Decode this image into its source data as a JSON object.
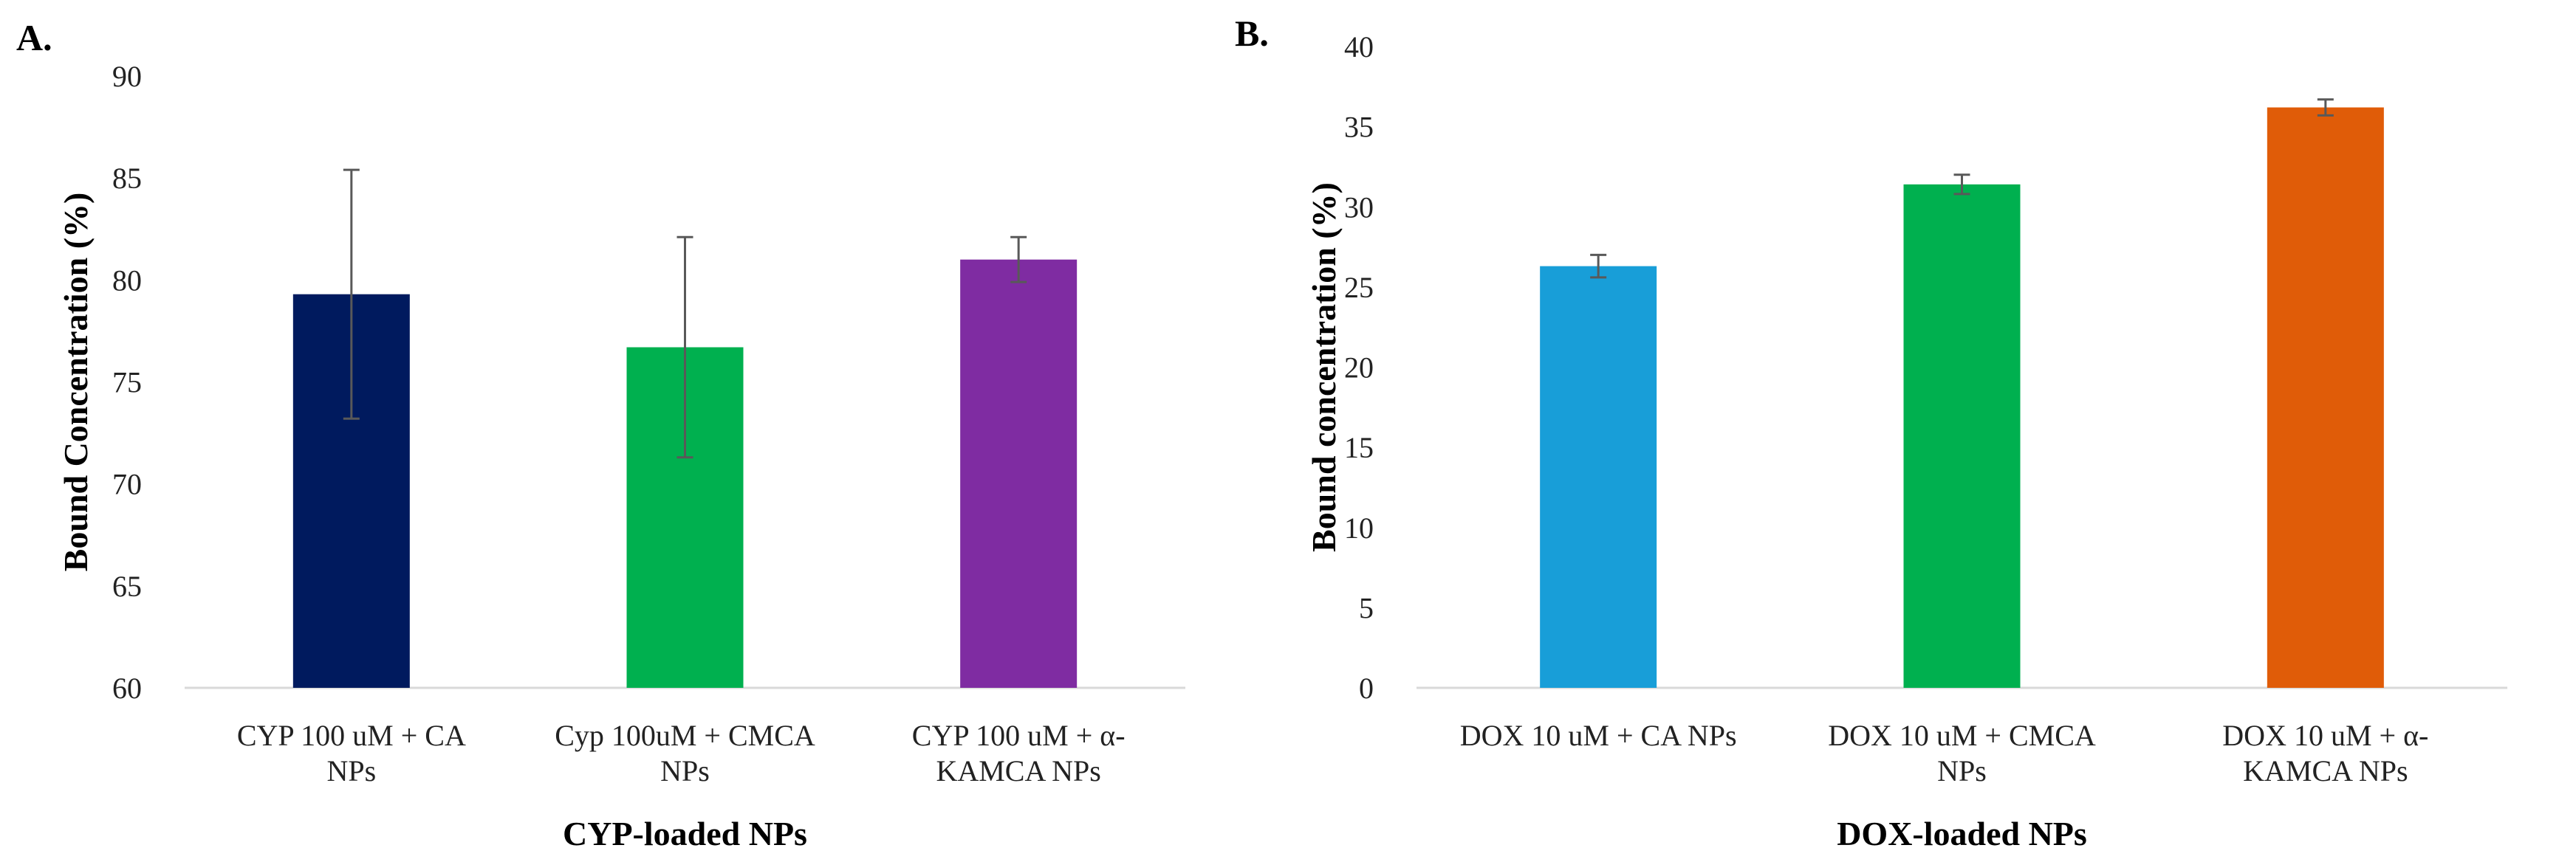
{
  "chart_data": [
    {
      "type": "bar",
      "panel_label": "A.",
      "categories": [
        [
          "CYP 100 uM + CA",
          "NPs"
        ],
        [
          "Cyp 100uM + CMCA",
          "NPs"
        ],
        [
          "CYP 100 uM + α-",
          "KAMCA NPs"
        ]
      ],
      "values": [
        79.3,
        76.7,
        81.0
      ],
      "errors": [
        6.1,
        5.4,
        1.1
      ],
      "colors": [
        "#001a5e",
        "#00b04f",
        "#7f2ca2"
      ],
      "xlabel": "CYP-loaded NPs",
      "ylabel": "Bound Concentration (%)",
      "ylim": [
        60,
        90
      ],
      "yticks": [
        60,
        65,
        70,
        75,
        80,
        85,
        90
      ],
      "grid": false
    },
    {
      "type": "bar",
      "panel_label": "B.",
      "categories": [
        [
          "DOX 10 uM + CA NPs"
        ],
        [
          "DOX 10 uM + CMCA",
          "NPs"
        ],
        [
          "DOX 10 uM + α-",
          "KAMCA NPs"
        ]
      ],
      "values": [
        26.3,
        31.4,
        36.2
      ],
      "errors": [
        0.7,
        0.6,
        0.5
      ],
      "colors": [
        "#189ed8",
        "#00b04f",
        "#e05c08"
      ],
      "xlabel": "DOX-loaded NPs",
      "ylabel": "Bound concentration (%)",
      "ylim": [
        0,
        40
      ],
      "yticks": [
        0,
        5,
        10,
        15,
        20,
        25,
        30,
        35,
        40
      ],
      "grid": false
    }
  ]
}
